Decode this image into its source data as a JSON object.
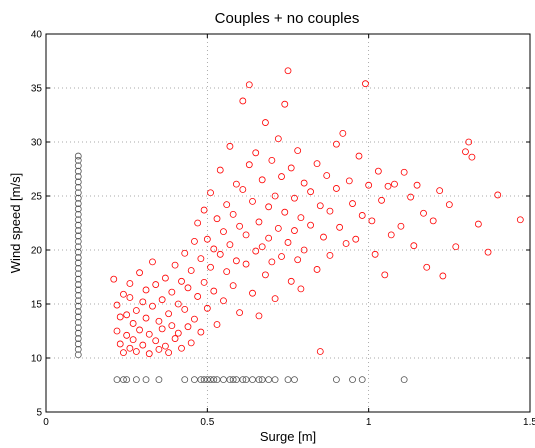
{
  "chart_data": {
    "type": "scatter",
    "title": "Couples + no couples",
    "xlabel": "Surge [m]",
    "ylabel": "Wind speed [m/s]",
    "xlim": [
      0,
      1.5
    ],
    "ylim": [
      5,
      40
    ],
    "xticks": [
      "0",
      "0.5",
      "1",
      "1.5"
    ],
    "yticks": [
      "5",
      "10",
      "15",
      "20",
      "25",
      "30",
      "35",
      "40"
    ],
    "grid": true,
    "marker": "open-circle",
    "series": [
      {
        "color": "#ff0000",
        "points": [
          [
            0.21,
            17.3
          ],
          [
            0.22,
            14.9
          ],
          [
            0.22,
            12.5
          ],
          [
            0.23,
            13.8
          ],
          [
            0.23,
            11.3
          ],
          [
            0.24,
            10.5
          ],
          [
            0.24,
            15.9
          ],
          [
            0.25,
            14.0
          ],
          [
            0.25,
            12.1
          ],
          [
            0.26,
            10.9
          ],
          [
            0.26,
            15.6
          ],
          [
            0.26,
            16.9
          ],
          [
            0.27,
            13.2
          ],
          [
            0.27,
            11.7
          ],
          [
            0.28,
            10.6
          ],
          [
            0.28,
            14.4
          ],
          [
            0.29,
            12.6
          ],
          [
            0.29,
            17.9
          ],
          [
            0.3,
            11.2
          ],
          [
            0.3,
            15.2
          ],
          [
            0.31,
            13.7
          ],
          [
            0.31,
            16.3
          ],
          [
            0.32,
            12.2
          ],
          [
            0.32,
            10.4
          ],
          [
            0.33,
            14.8
          ],
          [
            0.33,
            18.9
          ],
          [
            0.34,
            11.6
          ],
          [
            0.34,
            16.8
          ],
          [
            0.35,
            13.4
          ],
          [
            0.35,
            10.8
          ],
          [
            0.36,
            15.4
          ],
          [
            0.36,
            12.7
          ],
          [
            0.37,
            17.4
          ],
          [
            0.37,
            11.1
          ],
          [
            0.38,
            14.1
          ],
          [
            0.38,
            10.5
          ],
          [
            0.39,
            16.1
          ],
          [
            0.39,
            13.0
          ],
          [
            0.4,
            18.6
          ],
          [
            0.4,
            11.8
          ],
          [
            0.41,
            15.0
          ],
          [
            0.41,
            12.3
          ],
          [
            0.42,
            17.1
          ],
          [
            0.42,
            10.9
          ],
          [
            0.43,
            14.5
          ],
          [
            0.43,
            19.7
          ],
          [
            0.44,
            12.9
          ],
          [
            0.44,
            16.5
          ],
          [
            0.45,
            11.4
          ],
          [
            0.45,
            18.1
          ],
          [
            0.46,
            13.6
          ],
          [
            0.46,
            20.8
          ],
          [
            0.47,
            15.7
          ],
          [
            0.47,
            22.5
          ],
          [
            0.48,
            12.4
          ],
          [
            0.48,
            19.2
          ],
          [
            0.49,
            17.0
          ],
          [
            0.49,
            23.7
          ],
          [
            0.5,
            14.6
          ],
          [
            0.5,
            21.0
          ],
          [
            0.51,
            18.4
          ],
          [
            0.51,
            25.3
          ],
          [
            0.52,
            16.2
          ],
          [
            0.52,
            20.1
          ],
          [
            0.53,
            13.1
          ],
          [
            0.53,
            22.9
          ],
          [
            0.54,
            19.6
          ],
          [
            0.54,
            27.4
          ],
          [
            0.55,
            15.3
          ],
          [
            0.55,
            21.7
          ],
          [
            0.56,
            24.2
          ],
          [
            0.56,
            18.0
          ],
          [
            0.57,
            29.6
          ],
          [
            0.57,
            20.5
          ],
          [
            0.58,
            16.7
          ],
          [
            0.58,
            23.3
          ],
          [
            0.59,
            26.1
          ],
          [
            0.59,
            19.0
          ],
          [
            0.6,
            14.2
          ],
          [
            0.6,
            22.2
          ],
          [
            0.61,
            33.8
          ],
          [
            0.61,
            25.6
          ],
          [
            0.62,
            18.7
          ],
          [
            0.62,
            21.4
          ],
          [
            0.63,
            35.3
          ],
          [
            0.63,
            27.9
          ],
          [
            0.64,
            16.0
          ],
          [
            0.64,
            24.5
          ],
          [
            0.65,
            19.9
          ],
          [
            0.65,
            29.0
          ],
          [
            0.66,
            22.6
          ],
          [
            0.66,
            13.9
          ],
          [
            0.67,
            26.5
          ],
          [
            0.67,
            20.3
          ],
          [
            0.68,
            31.8
          ],
          [
            0.68,
            17.7
          ],
          [
            0.69,
            24.0
          ],
          [
            0.69,
            21.1
          ],
          [
            0.7,
            28.3
          ],
          [
            0.7,
            18.9
          ],
          [
            0.71,
            25.0
          ],
          [
            0.71,
            15.5
          ],
          [
            0.72,
            22.0
          ],
          [
            0.72,
            30.3
          ],
          [
            0.73,
            19.4
          ],
          [
            0.73,
            26.8
          ],
          [
            0.74,
            23.5
          ],
          [
            0.74,
            33.5
          ],
          [
            0.75,
            20.7
          ],
          [
            0.75,
            36.6
          ],
          [
            0.76,
            17.1
          ],
          [
            0.76,
            27.6
          ],
          [
            0.77,
            24.8
          ],
          [
            0.77,
            21.8
          ],
          [
            0.78,
            19.1
          ],
          [
            0.78,
            29.2
          ],
          [
            0.79,
            23.0
          ],
          [
            0.79,
            16.4
          ],
          [
            0.8,
            26.2
          ],
          [
            0.8,
            20.0
          ],
          [
            0.82,
            25.4
          ],
          [
            0.82,
            22.3
          ],
          [
            0.84,
            28.0
          ],
          [
            0.84,
            18.2
          ],
          [
            0.85,
            24.1
          ],
          [
            0.85,
            10.6
          ],
          [
            0.86,
            21.2
          ],
          [
            0.87,
            26.9
          ],
          [
            0.88,
            19.5
          ],
          [
            0.88,
            23.6
          ],
          [
            0.9,
            29.8
          ],
          [
            0.9,
            25.7
          ],
          [
            0.91,
            22.1
          ],
          [
            0.92,
            30.8
          ],
          [
            0.93,
            20.6
          ],
          [
            0.94,
            26.4
          ],
          [
            0.95,
            24.3
          ],
          [
            0.96,
            21.0
          ],
          [
            0.97,
            28.7
          ],
          [
            0.98,
            23.2
          ],
          [
            0.99,
            35.4
          ],
          [
            1.0,
            26.0
          ],
          [
            1.01,
            22.7
          ],
          [
            1.02,
            19.6
          ],
          [
            1.03,
            27.3
          ],
          [
            1.04,
            24.6
          ],
          [
            1.05,
            17.7
          ],
          [
            1.06,
            25.9
          ],
          [
            1.07,
            21.4
          ],
          [
            1.08,
            26.1
          ],
          [
            1.1,
            22.2
          ],
          [
            1.11,
            27.2
          ],
          [
            1.13,
            24.9
          ],
          [
            1.14,
            20.4
          ],
          [
            1.15,
            26.0
          ],
          [
            1.17,
            23.4
          ],
          [
            1.18,
            18.4
          ],
          [
            1.2,
            22.7
          ],
          [
            1.22,
            25.5
          ],
          [
            1.23,
            17.6
          ],
          [
            1.25,
            24.2
          ],
          [
            1.27,
            20.3
          ],
          [
            1.3,
            29.1
          ],
          [
            1.31,
            30.0
          ],
          [
            1.32,
            28.6
          ],
          [
            1.34,
            22.4
          ],
          [
            1.37,
            19.8
          ],
          [
            1.4,
            25.1
          ],
          [
            1.47,
            22.8
          ]
        ]
      },
      {
        "color": "#555555",
        "points": [
          [
            0.1,
            10.3
          ],
          [
            0.1,
            10.8
          ],
          [
            0.1,
            11.3
          ],
          [
            0.1,
            11.8
          ],
          [
            0.1,
            12.3
          ],
          [
            0.1,
            12.8
          ],
          [
            0.1,
            13.3
          ],
          [
            0.1,
            13.8
          ],
          [
            0.1,
            14.3
          ],
          [
            0.1,
            14.8
          ],
          [
            0.1,
            15.3
          ],
          [
            0.1,
            15.8
          ],
          [
            0.1,
            16.3
          ],
          [
            0.1,
            16.8
          ],
          [
            0.1,
            17.3
          ],
          [
            0.1,
            17.8
          ],
          [
            0.1,
            18.3
          ],
          [
            0.1,
            18.8
          ],
          [
            0.1,
            19.3
          ],
          [
            0.1,
            19.8
          ],
          [
            0.1,
            20.3
          ],
          [
            0.1,
            20.8
          ],
          [
            0.1,
            21.3
          ],
          [
            0.1,
            21.8
          ],
          [
            0.1,
            22.3
          ],
          [
            0.1,
            22.8
          ],
          [
            0.1,
            23.3
          ],
          [
            0.1,
            23.8
          ],
          [
            0.1,
            24.3
          ],
          [
            0.1,
            24.8
          ],
          [
            0.1,
            25.3
          ],
          [
            0.1,
            25.8
          ],
          [
            0.1,
            26.3
          ],
          [
            0.1,
            26.8
          ],
          [
            0.1,
            27.3
          ],
          [
            0.1,
            27.8
          ],
          [
            0.1,
            28.3
          ],
          [
            0.1,
            28.7
          ],
          [
            0.22,
            8.0
          ],
          [
            0.24,
            8.0
          ],
          [
            0.25,
            8.0
          ],
          [
            0.28,
            8.0
          ],
          [
            0.31,
            8.0
          ],
          [
            0.35,
            8.0
          ],
          [
            0.43,
            8.0
          ],
          [
            0.46,
            8.0
          ],
          [
            0.48,
            8.0
          ],
          [
            0.49,
            8.0
          ],
          [
            0.5,
            8.0
          ],
          [
            0.51,
            8.0
          ],
          [
            0.52,
            8.0
          ],
          [
            0.53,
            8.0
          ],
          [
            0.55,
            8.0
          ],
          [
            0.57,
            8.0
          ],
          [
            0.58,
            8.0
          ],
          [
            0.59,
            8.0
          ],
          [
            0.61,
            8.0
          ],
          [
            0.62,
            8.0
          ],
          [
            0.64,
            8.0
          ],
          [
            0.66,
            8.0
          ],
          [
            0.67,
            8.0
          ],
          [
            0.69,
            8.0
          ],
          [
            0.71,
            8.0
          ],
          [
            0.75,
            8.0
          ],
          [
            0.77,
            8.0
          ],
          [
            0.9,
            8.0
          ],
          [
            0.95,
            8.0
          ],
          [
            0.98,
            8.0
          ],
          [
            1.11,
            8.0
          ]
        ]
      }
    ]
  }
}
